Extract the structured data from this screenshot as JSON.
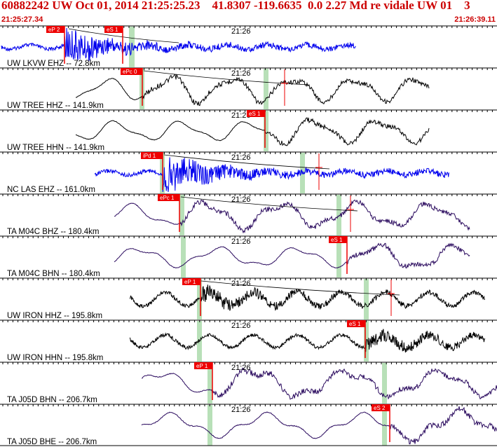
{
  "header": {
    "title": "60882242 UW Oct 01, 2014 21:25:25.23    41.8307 -119.6635  0.0 2.27 Md re vidale UW 01    3",
    "start_time": "21:25:27.34",
    "end_time": "21:26:39.11"
  },
  "minute_label": "21:26",
  "colors": {
    "header_red": "#cc0000",
    "pick_red": "#ee0000",
    "window_green": "#b8e0b8",
    "trace_blue": "#0000ee",
    "trace_black": "#000000",
    "trace_purple": "#2a0a5e"
  },
  "traces": [
    {
      "label": "UW LKVW EHZ -- 72.8km",
      "color": "blue",
      "picks": [
        "eP 2",
        "eS 1"
      ]
    },
    {
      "label": "UW TREE HHZ -- 141.9km",
      "color": "black",
      "picks": [
        "ePc 0"
      ]
    },
    {
      "label": "UW TREE HHN -- 141.9km",
      "color": "black",
      "picks": [
        "eS 1"
      ]
    },
    {
      "label": "NC LAS EHZ -- 161.0km",
      "color": "blue",
      "picks": [
        "iPd 1"
      ]
    },
    {
      "label": "TA M04C BHZ -- 180.4km",
      "color": "purple",
      "picks": [
        "ePc 1"
      ]
    },
    {
      "label": "TA M04C BHN -- 180.4km",
      "color": "purple",
      "picks": [
        "eS 1"
      ]
    },
    {
      "label": "UW IRON HHZ -- 195.8km",
      "color": "black",
      "picks": [
        "eP 1"
      ]
    },
    {
      "label": "UW IRON HHN -- 195.8km",
      "color": "black",
      "picks": [
        "eS 1"
      ]
    },
    {
      "label": "TA J05D BHN -- 206.7km",
      "color": "purple",
      "picks": [
        "eP 1"
      ]
    },
    {
      "label": "TA J05D BHE -- 206.7km",
      "color": "purple",
      "picks": [
        "eS 2"
      ]
    }
  ]
}
